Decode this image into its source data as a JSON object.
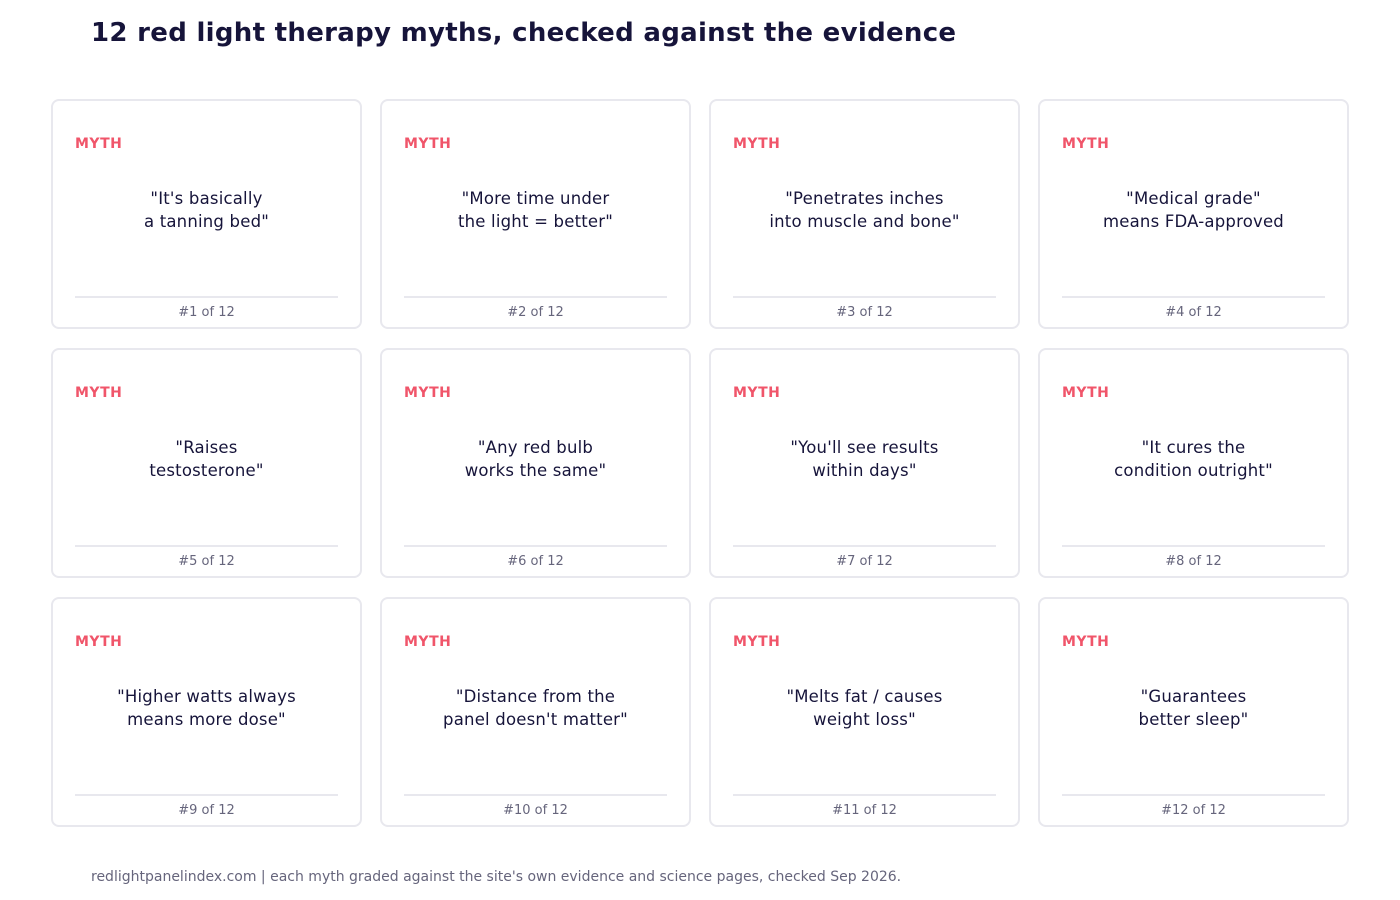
{
  "page": {
    "title": "12 red light therapy myths, checked against the evidence",
    "footer": "redlightpanelindex.com | each myth graded against the site's own evidence and science pages, checked Sep 2026."
  },
  "colors": {
    "myth_tag": "#f0556a",
    "title": "#16143a",
    "muted": "#66657c",
    "card_border": "#e8e8ee"
  },
  "cards": [
    {
      "tag": "MYTH",
      "line1": "\"It's basically",
      "line2": "a tanning bed\"",
      "index": "#1 of 12"
    },
    {
      "tag": "MYTH",
      "line1": "\"More time under",
      "line2": "the light = better\"",
      "index": "#2 of 12"
    },
    {
      "tag": "MYTH",
      "line1": "\"Penetrates inches",
      "line2": "into muscle and bone\"",
      "index": "#3 of 12"
    },
    {
      "tag": "MYTH",
      "line1": "\"Medical grade\"",
      "line2": "means FDA-approved",
      "index": "#4 of 12"
    },
    {
      "tag": "MYTH",
      "line1": "\"Raises",
      "line2": "testosterone\"",
      "index": "#5 of 12"
    },
    {
      "tag": "MYTH",
      "line1": "\"Any red bulb",
      "line2": "works the same\"",
      "index": "#6 of 12"
    },
    {
      "tag": "MYTH",
      "line1": "\"You'll see results",
      "line2": "within days\"",
      "index": "#7 of 12"
    },
    {
      "tag": "MYTH",
      "line1": "\"It cures the",
      "line2": "condition outright\"",
      "index": "#8 of 12"
    },
    {
      "tag": "MYTH",
      "line1": "\"Higher watts always",
      "line2": "means more dose\"",
      "index": "#9 of 12"
    },
    {
      "tag": "MYTH",
      "line1": "\"Distance from the",
      "line2": "panel doesn't matter\"",
      "index": "#10 of 12"
    },
    {
      "tag": "MYTH",
      "line1": "\"Melts fat / causes",
      "line2": "weight loss\"",
      "index": "#11 of 12"
    },
    {
      "tag": "MYTH",
      "line1": "\"Guarantees",
      "line2": "better sleep\"",
      "index": "#12 of 12"
    }
  ]
}
